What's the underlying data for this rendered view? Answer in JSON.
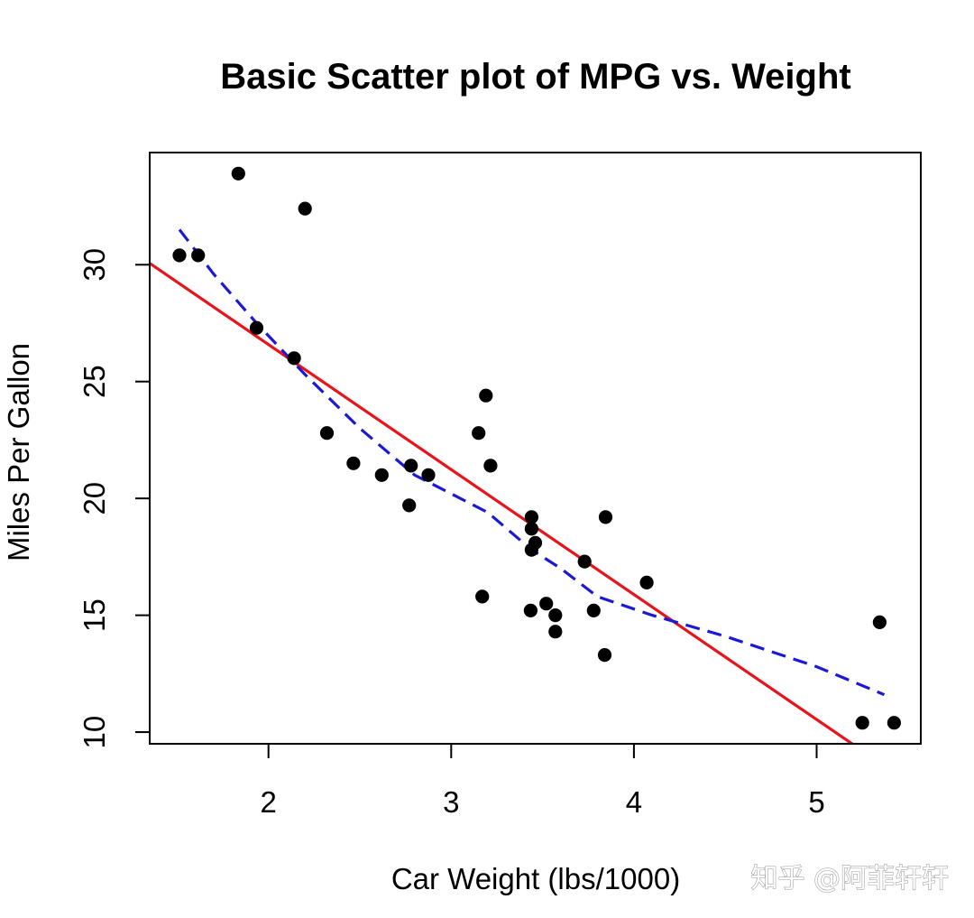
{
  "chart_data": {
    "type": "scatter",
    "title": "Basic Scatter plot of MPG vs. Weight",
    "xlabel": "Car Weight (lbs/1000)",
    "ylabel": "Miles Per Gallon",
    "xlim": [
      1.35,
      5.57
    ],
    "ylim": [
      9.5,
      34.8
    ],
    "x_ticks": [
      2,
      3,
      4,
      5
    ],
    "x_tick_labels": [
      "2",
      "3",
      "4",
      "5"
    ],
    "y_ticks": [
      10,
      15,
      20,
      25,
      30
    ],
    "y_tick_labels": [
      "10",
      "15",
      "20",
      "25",
      "30"
    ],
    "grid": false,
    "series": [
      {
        "name": "points",
        "kind": "points",
        "color": "#000000",
        "x": [
          2.62,
          2.875,
          2.32,
          3.215,
          3.44,
          3.46,
          3.57,
          3.19,
          3.15,
          3.44,
          3.44,
          4.07,
          3.73,
          3.78,
          5.25,
          5.424,
          5.345,
          2.2,
          1.615,
          1.835,
          2.465,
          3.52,
          3.435,
          3.84,
          3.845,
          1.935,
          2.14,
          1.513,
          3.17,
          2.77,
          3.57,
          2.78
        ],
        "y": [
          21.0,
          21.0,
          22.8,
          21.4,
          18.7,
          18.1,
          14.3,
          24.4,
          22.8,
          19.2,
          17.8,
          16.4,
          17.3,
          15.2,
          10.4,
          10.4,
          14.7,
          32.4,
          30.4,
          33.9,
          21.5,
          15.5,
          15.2,
          13.3,
          19.2,
          27.3,
          26.0,
          30.4,
          15.8,
          19.7,
          15.0,
          21.4
        ]
      },
      {
        "name": "linear fit",
        "kind": "line",
        "color": "#e8141c",
        "style": "solid",
        "x": [
          1.35,
          5.22
        ],
        "y": [
          30.06,
          9.36
        ]
      },
      {
        "name": "lowess",
        "kind": "line",
        "color": "#1a1ad6",
        "style": "dashed",
        "x": [
          1.513,
          1.7,
          1.935,
          2.2,
          2.5,
          2.8,
          3.0,
          3.2,
          3.44,
          3.6,
          3.8,
          4.1,
          4.5,
          5.0,
          5.37
        ],
        "y": [
          31.5,
          29.6,
          27.5,
          25.3,
          23.0,
          21.0,
          20.2,
          19.4,
          17.8,
          17.0,
          15.8,
          15.0,
          14.1,
          12.8,
          11.6
        ]
      }
    ]
  },
  "watermark": {
    "text": "知乎 @阿菲轩轩"
  }
}
